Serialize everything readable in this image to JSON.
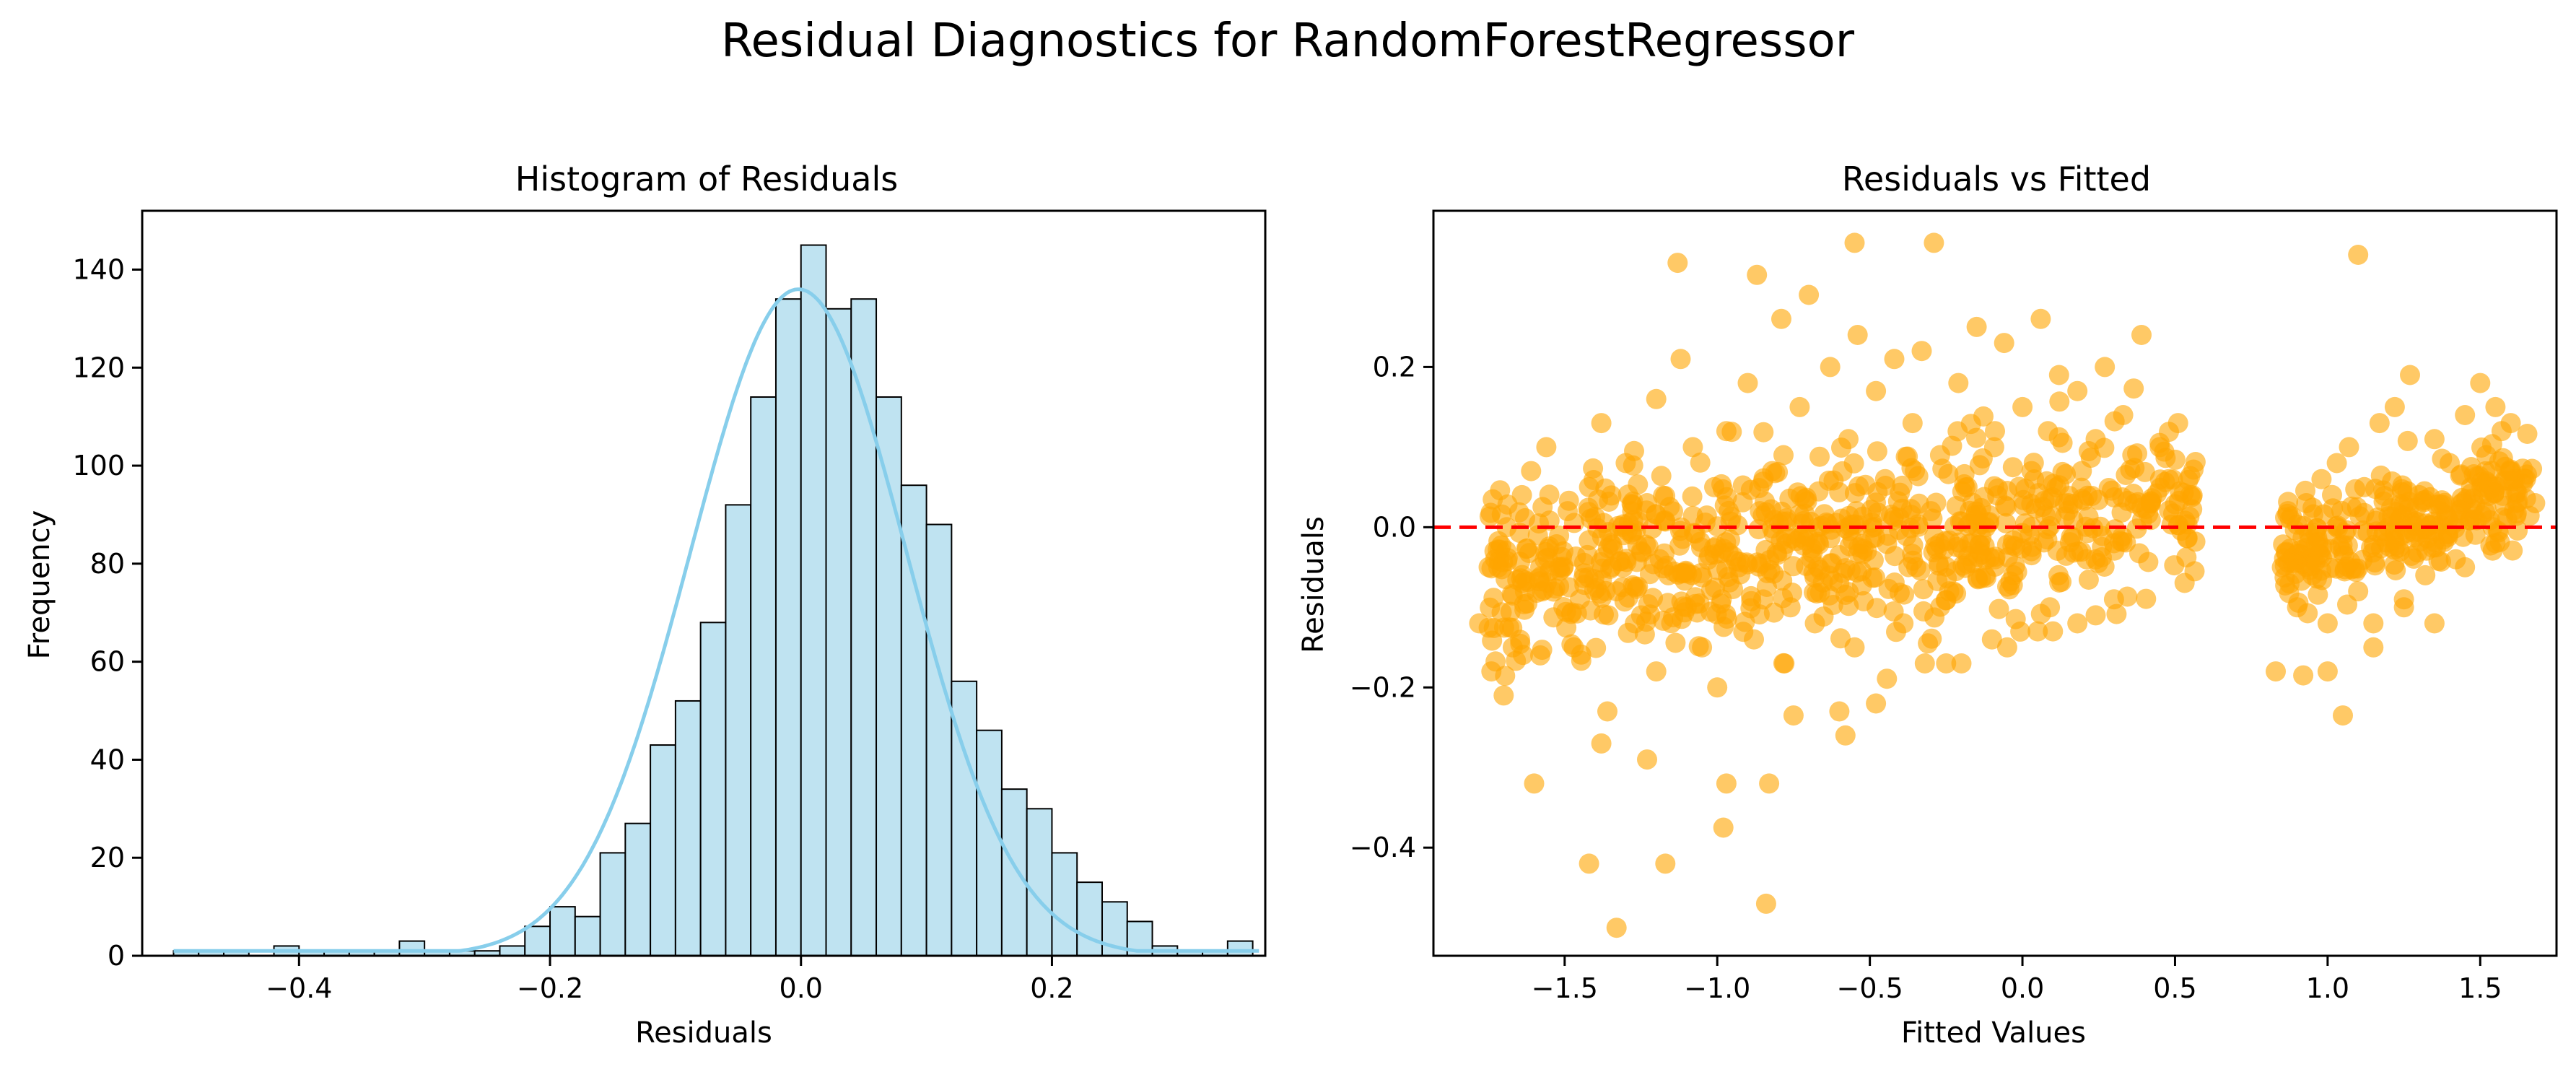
{
  "figure": {
    "suptitle": "Residual Diagnostics for RandomForestRegressor"
  },
  "chart_data": [
    {
      "type": "bar",
      "subtype": "histogram-with-kde",
      "title": "Histogram of Residuals",
      "xlabel": "Residuals",
      "ylabel": "Frequency",
      "xlim": [
        -0.525,
        0.37
      ],
      "ylim": [
        0,
        152
      ],
      "xticks": [
        -0.4,
        -0.2,
        0.0,
        0.2
      ],
      "xtick_labels": [
        "−0.4",
        "−0.2",
        "0.0",
        "0.2"
      ],
      "yticks": [
        0,
        20,
        40,
        60,
        80,
        100,
        120,
        140
      ],
      "ytick_labels": [
        "0",
        "20",
        "40",
        "60",
        "80",
        "100",
        "120",
        "140"
      ],
      "bin_start": -0.5,
      "bin_width": 0.02,
      "counts": [
        1,
        1,
        1,
        0,
        2,
        1,
        1,
        1,
        1,
        3,
        1,
        1,
        1,
        2,
        6,
        10,
        8,
        21,
        27,
        43,
        52,
        68,
        92,
        114,
        134,
        145,
        132,
        134,
        114,
        96,
        88,
        56,
        46,
        34,
        30,
        21,
        15,
        11,
        7,
        2,
        1,
        1,
        3
      ],
      "bar_color": "#bfe3f1",
      "edge_color": "#000000",
      "kde_color": "#87ceeb",
      "kde": {
        "mean": -0.002,
        "std": 0.086,
        "peak": 136
      },
      "grid": false
    },
    {
      "type": "scatter",
      "title": "Residuals vs Fitted",
      "xlabel": "Fitted Values",
      "ylabel": "Residuals",
      "xlim": [
        -1.93,
        1.75
      ],
      "ylim": [
        -0.535,
        0.395
      ],
      "xticks": [
        -1.5,
        -1.0,
        -0.5,
        0.0,
        0.5,
        1.0,
        1.5
      ],
      "xtick_labels": [
        "−1.5",
        "−1.0",
        "−0.5",
        "0.0",
        "0.5",
        "1.0",
        "1.5"
      ],
      "yticks": [
        -0.4,
        -0.2,
        0.0,
        0.2
      ],
      "ytick_labels": [
        "−0.4",
        "−0.2",
        "0.0",
        "0.2"
      ],
      "point_color": "#ffa500",
      "point_alpha": 0.6,
      "reference_line": {
        "y": 0,
        "color": "#ff0000",
        "style": "dashed"
      },
      "points": [
        [
          -1.13,
          0.33
        ],
        [
          -0.87,
          0.315
        ],
        [
          -0.55,
          0.355
        ],
        [
          -0.29,
          0.355
        ],
        [
          1.1,
          0.34
        ],
        [
          -1.42,
          -0.42
        ],
        [
          -1.33,
          -0.5
        ],
        [
          -1.17,
          -0.42
        ],
        [
          -0.84,
          -0.47
        ],
        [
          -0.98,
          -0.375
        ],
        [
          -1.6,
          -0.32
        ],
        [
          -0.97,
          -0.32
        ],
        [
          -0.83,
          -0.32
        ],
        [
          -1.23,
          -0.29
        ],
        [
          -1.38,
          -0.27
        ],
        [
          -1.36,
          -0.23
        ],
        [
          -0.48,
          -0.22
        ],
        [
          -0.58,
          -0.26
        ],
        [
          -0.6,
          -0.23
        ],
        [
          -0.75,
          -0.235
        ],
        [
          1.05,
          -0.235
        ],
        [
          0.83,
          -0.18
        ],
        [
          0.92,
          -0.185
        ],
        [
          1.0,
          -0.18
        ],
        [
          -1.78,
          -0.12
        ],
        [
          -1.74,
          -0.18
        ],
        [
          -1.7,
          -0.21
        ],
        [
          -1.67,
          -0.15
        ],
        [
          -1.63,
          -0.08
        ],
        [
          -1.58,
          -0.16
        ],
        [
          -1.73,
          -0.03
        ],
        [
          -1.69,
          0.0
        ],
        [
          -1.64,
          0.04
        ],
        [
          -1.61,
          0.07
        ],
        [
          -1.56,
          0.1
        ],
        [
          -1.52,
          -0.05
        ],
        [
          -1.49,
          0.02
        ],
        [
          -1.45,
          -0.09
        ],
        [
          -1.42,
          0.05
        ],
        [
          -1.38,
          0.13
        ],
        [
          -1.35,
          -0.02
        ],
        [
          -1.3,
          0.08
        ],
        [
          -1.27,
          -0.12
        ],
        [
          -1.23,
          0.03
        ],
        [
          -1.2,
          0.16
        ],
        [
          -1.16,
          -0.06
        ],
        [
          -1.12,
          0.21
        ],
        [
          -1.08,
          0.1
        ],
        [
          -1.05,
          -0.15
        ],
        [
          -1.01,
          0.05
        ],
        [
          -0.97,
          0.12
        ],
        [
          -0.93,
          -0.05
        ],
        [
          -0.9,
          0.18
        ],
        [
          -0.86,
          0.02
        ],
        [
          -0.82,
          0.07
        ],
        [
          -0.79,
          0.26
        ],
        [
          -0.76,
          -0.1
        ],
        [
          -0.73,
          0.15
        ],
        [
          -0.7,
          0.29
        ],
        [
          -0.67,
          0.0
        ],
        [
          -0.63,
          0.2
        ],
        [
          -0.6,
          -0.07
        ],
        [
          -0.57,
          0.11
        ],
        [
          -0.54,
          0.24
        ],
        [
          -0.51,
          -0.03
        ],
        [
          -0.48,
          0.17
        ],
        [
          -0.45,
          0.06
        ],
        [
          -0.42,
          0.21
        ],
        [
          -0.39,
          -0.12
        ],
        [
          -0.36,
          0.13
        ],
        [
          -0.33,
          0.22
        ],
        [
          -0.3,
          0.02
        ],
        [
          -0.27,
          0.09
        ],
        [
          -0.24,
          -0.08
        ],
        [
          -0.21,
          0.18
        ],
        [
          -0.18,
          0.05
        ],
        [
          -0.15,
          0.25
        ],
        [
          -0.12,
          0.0
        ],
        [
          -0.09,
          0.12
        ],
        [
          -0.06,
          0.23
        ],
        [
          -0.03,
          -0.06
        ],
        [
          0.0,
          0.15
        ],
        [
          0.03,
          0.07
        ],
        [
          0.06,
          0.26
        ],
        [
          0.09,
          -0.1
        ],
        [
          0.12,
          0.19
        ],
        [
          0.15,
          0.03
        ],
        [
          0.18,
          0.17
        ],
        [
          0.21,
          -0.04
        ],
        [
          0.24,
          0.11
        ],
        [
          0.27,
          0.2
        ],
        [
          0.3,
          -0.02
        ],
        [
          0.33,
          0.14
        ],
        [
          0.36,
          0.09
        ],
        [
          0.39,
          0.24
        ],
        [
          0.42,
          0.03
        ],
        [
          0.45,
          0.1
        ],
        [
          0.48,
          0.06
        ],
        [
          0.51,
          0.13
        ],
        [
          0.55,
          0.04
        ],
        [
          -0.2,
          -0.17
        ],
        [
          -0.05,
          -0.15
        ],
        [
          0.05,
          -0.13
        ],
        [
          0.18,
          -0.12
        ],
        [
          0.3,
          -0.09
        ],
        [
          -0.32,
          -0.17
        ],
        [
          -0.25,
          -0.17
        ],
        [
          -0.1,
          -0.14
        ],
        [
          0.1,
          -0.13
        ],
        [
          0.24,
          -0.11
        ],
        [
          -1.58,
          -0.05
        ],
        [
          -1.47,
          -0.15
        ],
        [
          -1.33,
          -0.08
        ],
        [
          -1.2,
          -0.18
        ],
        [
          -1.1,
          -0.1
        ],
        [
          -1.0,
          -0.2
        ],
        [
          -0.88,
          -0.14
        ],
        [
          -0.78,
          -0.17
        ],
        [
          -0.68,
          -0.12
        ],
        [
          -0.55,
          -0.15
        ],
        [
          0.85,
          -0.05
        ],
        [
          0.87,
          0.02
        ],
        [
          0.9,
          -0.1
        ],
        [
          0.93,
          0.03
        ],
        [
          0.95,
          -0.06
        ],
        [
          0.98,
          0.06
        ],
        [
          1.0,
          -0.12
        ],
        [
          1.03,
          0.08
        ],
        [
          1.05,
          -0.03
        ],
        [
          1.07,
          0.1
        ],
        [
          1.1,
          -0.08
        ],
        [
          1.12,
          0.05
        ],
        [
          1.15,
          -0.15
        ],
        [
          1.17,
          0.13
        ],
        [
          1.2,
          0.0
        ],
        [
          1.22,
          0.15
        ],
        [
          1.25,
          -0.1
        ],
        [
          1.27,
          0.19
        ],
        [
          1.3,
          0.04
        ],
        [
          1.32,
          -0.06
        ],
        [
          1.35,
          0.11
        ],
        [
          1.37,
          0.02
        ],
        [
          1.4,
          0.08
        ],
        [
          1.42,
          -0.04
        ],
        [
          1.45,
          0.14
        ],
        [
          1.47,
          0.05
        ],
        [
          1.5,
          0.18
        ],
        [
          1.52,
          0.09
        ],
        [
          1.55,
          -0.02
        ],
        [
          1.57,
          0.12
        ],
        [
          1.6,
          0.07
        ],
        [
          1.62,
          0.03
        ],
        [
          1.65,
          0.06
        ],
        [
          1.68,
          0.03
        ],
        [
          1.35,
          -0.12
        ],
        [
          1.25,
          -0.09
        ],
        [
          1.15,
          -0.12
        ],
        [
          1.45,
          -0.05
        ],
        [
          1.55,
          0.15
        ],
        [
          1.6,
          0.13
        ]
      ],
      "background_cloud_seed": 7,
      "background_cloud_count": 1000
    }
  ]
}
